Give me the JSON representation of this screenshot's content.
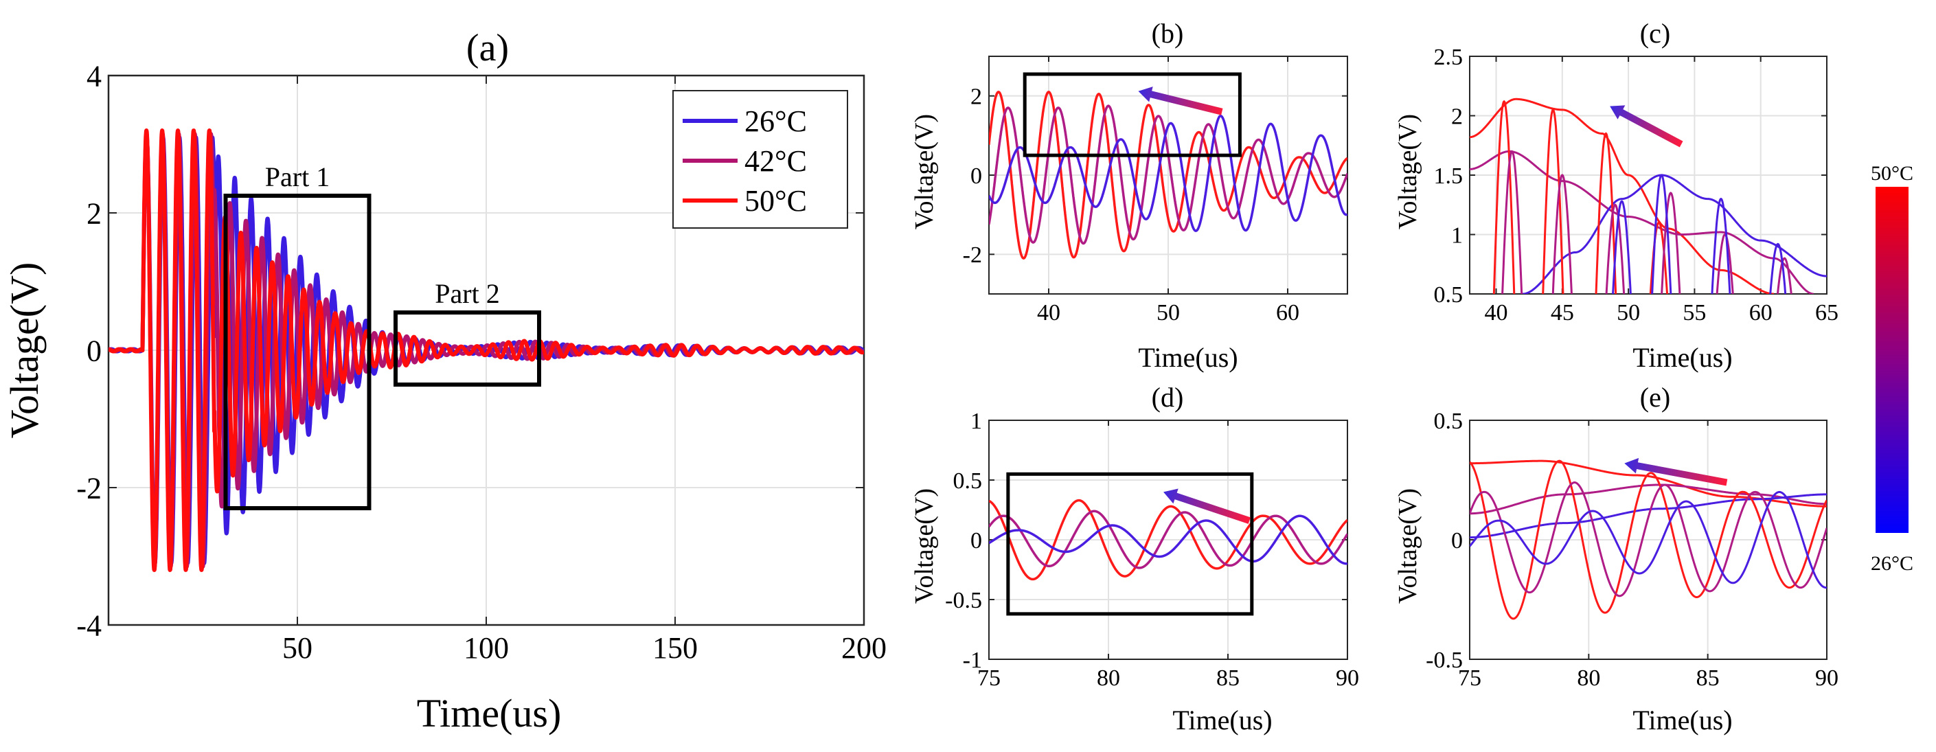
{
  "chart_data": [
    {
      "id": "a",
      "type": "line",
      "title": "(a)",
      "xlabel": "Time(us)",
      "ylabel": "Voltage(V)",
      "xlim": [
        0,
        200
      ],
      "ylim": [
        -4,
        4
      ],
      "xticks": [
        50,
        100,
        150,
        200
      ],
      "yticks": [
        -4,
        -2,
        0,
        2,
        4
      ],
      "grid": true,
      "legend_position": "top-right",
      "series": [
        {
          "name": "26°C",
          "color": "#3a1de0",
          "signal": {
            "t0": 9,
            "t_peak": 28,
            "t_decay_end": 75,
            "freq_MHz": 0.23,
            "amp_early": 3.1,
            "amp_decay_start": 2.9,
            "amp_tail": 0.2,
            "lag_us": 1.6
          }
        },
        {
          "name": "42°C",
          "color": "#b0146e",
          "signal": {
            "t0": 9,
            "t_peak": 28,
            "t_decay_end": 72,
            "freq_MHz": 0.235,
            "amp_early": 3.15,
            "amp_decay_start": 2.4,
            "amp_tail": 0.22,
            "lag_us": 0.8
          }
        },
        {
          "name": "50°C",
          "color": "#ff0d0d",
          "signal": {
            "t0": 9,
            "t_peak": 28,
            "t_decay_end": 70,
            "freq_MHz": 0.24,
            "amp_early": 3.2,
            "amp_decay_start": 2.1,
            "amp_tail": 0.25,
            "lag_us": 0
          }
        }
      ],
      "annotations": [
        {
          "label": "Part 1",
          "x_range": [
            31,
            69
          ],
          "y_range": [
            -2.3,
            2.25
          ]
        },
        {
          "label": "Part 2",
          "x_range": [
            76,
            114
          ],
          "y_range": [
            -0.5,
            0.55
          ]
        }
      ]
    },
    {
      "id": "b",
      "type": "line",
      "title": "(b)",
      "xlabel": "Time(us)",
      "ylabel": "Voltage(V)",
      "xlim": [
        35,
        65
      ],
      "ylim": [
        -3,
        3
      ],
      "xticks": [
        40,
        50,
        60
      ],
      "yticks": [
        -2,
        0,
        2
      ],
      "curves": [
        {
          "peaks_at": [
            40,
            44.2,
            48.2,
            52.4,
            56.8,
            61
          ],
          "amplitudes": [
            2.1,
            2.05,
            1.8,
            1.1,
            0.7,
            0.45
          ],
          "color": "#ff1a1a"
        },
        {
          "peaks_at": [
            40.8,
            45,
            49,
            53.2,
            57.5,
            61.8
          ],
          "amplitudes": [
            1.7,
            1.75,
            1.5,
            1.3,
            0.9,
            0.55
          ],
          "color": "#b01c86"
        },
        {
          "peaks_at": [
            41.8,
            46,
            50,
            54.3,
            58.5,
            62.8
          ],
          "amplitudes": [
            0.7,
            0.9,
            1.3,
            1.5,
            1.3,
            1.0
          ],
          "color": "#4a1ee0"
        }
      ],
      "box": {
        "x_range": [
          38,
          56
        ],
        "y_range": [
          0.5,
          2.55
        ]
      }
    },
    {
      "id": "c",
      "type": "line",
      "title": "(c)",
      "xlabel": "Time(us)",
      "ylabel": "Voltage(V)",
      "xlim": [
        38,
        65
      ],
      "ylim": [
        0.5,
        2.5
      ],
      "xticks": [
        40,
        45,
        50,
        55,
        60,
        65
      ],
      "yticks": [
        0.5,
        1,
        1.5,
        2,
        2.5
      ],
      "envelopes": [
        {
          "points": [
            [
              38,
              1.82
            ],
            [
              41.5,
              2.14
            ],
            [
              45,
              2.05
            ],
            [
              48,
              1.85
            ],
            [
              50,
              1.5
            ],
            [
              53,
              1.05
            ],
            [
              57,
              0.7
            ],
            [
              61,
              0.5
            ]
          ],
          "color": "#ff1a1a"
        },
        {
          "points": [
            [
              38,
              1.55
            ],
            [
              41,
              1.7
            ],
            [
              45,
              1.45
            ],
            [
              50,
              1.15
            ],
            [
              54,
              1.0
            ],
            [
              57,
              1.02
            ],
            [
              61,
              0.8
            ],
            [
              64,
              0.5
            ]
          ],
          "color": "#b01c86"
        },
        {
          "points": [
            [
              42,
              0.5
            ],
            [
              46,
              0.85
            ],
            [
              49.5,
              1.3
            ],
            [
              52.5,
              1.5
            ],
            [
              56,
              1.3
            ],
            [
              60,
              0.95
            ],
            [
              65,
              0.65
            ]
          ],
          "color": "#4a1ee0"
        }
      ],
      "peaks": [
        {
          "t": 40.6,
          "v": 2.12,
          "color": "#ff1a1a"
        },
        {
          "t": 44.3,
          "v": 2.05,
          "color": "#ff1a1a"
        },
        {
          "t": 48.3,
          "v": 1.85,
          "color": "#ff1a1a"
        },
        {
          "t": 52.3,
          "v": 1.1,
          "color": "#ff1a1a"
        },
        {
          "t": 41.2,
          "v": 1.7,
          "color": "#b01c86"
        },
        {
          "t": 45,
          "v": 1.5,
          "color": "#b01c86"
        },
        {
          "t": 49,
          "v": 1.25,
          "color": "#b01c86"
        },
        {
          "t": 53.2,
          "v": 1.35,
          "color": "#b01c86"
        },
        {
          "t": 57.3,
          "v": 1.0,
          "color": "#b01c86"
        },
        {
          "t": 61.8,
          "v": 0.8,
          "color": "#b01c86"
        },
        {
          "t": 49.5,
          "v": 1.28,
          "color": "#4a1ee0"
        },
        {
          "t": 52.5,
          "v": 1.5,
          "color": "#4a1ee0"
        },
        {
          "t": 57,
          "v": 1.3,
          "color": "#4a1ee0"
        },
        {
          "t": 61.3,
          "v": 0.92,
          "color": "#4a1ee0"
        }
      ]
    },
    {
      "id": "d",
      "type": "line",
      "title": "(d)",
      "xlabel": "Time(us)",
      "ylabel": "Voltage(V)",
      "xlim": [
        75,
        90
      ],
      "ylim": [
        -1,
        1
      ],
      "xticks": [
        75,
        80,
        85,
        90
      ],
      "yticks": [
        -1,
        -0.5,
        0,
        0.5,
        1
      ],
      "curves": [
        {
          "peaks_at": [
            74.9,
            78.8,
            82.6,
            86.5
          ],
          "amplitudes": [
            0.33,
            0.33,
            0.28,
            0.2
          ],
          "color": "#ff1a1a"
        },
        {
          "peaks_at": [
            75.6,
            79.4,
            83.2,
            87
          ],
          "amplitudes": [
            0.2,
            0.24,
            0.23,
            0.2
          ],
          "color": "#b01c86"
        },
        {
          "peaks_at": [
            76.2,
            80.1,
            84,
            88
          ],
          "amplitudes": [
            0.08,
            0.12,
            0.16,
            0.2
          ],
          "color": "#4a1ee0"
        }
      ],
      "box": {
        "x_range": [
          75.8,
          86
        ],
        "y_range": [
          -0.62,
          0.55
        ]
      }
    },
    {
      "id": "e",
      "type": "line",
      "title": "(e)",
      "xlabel": "Time(us)",
      "ylabel": "Voltage(V)",
      "xlim": [
        75,
        90
      ],
      "ylim": [
        -0.5,
        0.5
      ],
      "xticks": [
        75,
        80,
        85,
        90
      ],
      "yticks": [
        -0.5,
        0,
        0.5
      ],
      "envelopes": [
        {
          "points": [
            [
              75,
              0.32
            ],
            [
              78,
              0.33
            ],
            [
              82,
              0.27
            ],
            [
              86,
              0.18
            ],
            [
              90,
              0.14
            ]
          ],
          "color": "#ff1a1a"
        },
        {
          "points": [
            [
              75,
              0.11
            ],
            [
              79,
              0.19
            ],
            [
              83,
              0.23
            ],
            [
              87,
              0.19
            ],
            [
              90,
              0.15
            ]
          ],
          "color": "#b01c86"
        },
        {
          "points": [
            [
              75,
              0.01
            ],
            [
              79,
              0.07
            ],
            [
              83,
              0.13
            ],
            [
              87,
              0.17
            ],
            [
              90,
              0.19
            ]
          ],
          "color": "#4a1ee0"
        }
      ],
      "curves": [
        {
          "peaks_at": [
            74.9,
            78.8,
            82.6,
            86.5
          ],
          "amplitudes": [
            0.33,
            0.33,
            0.28,
            0.2
          ],
          "color": "#ff1a1a"
        },
        {
          "peaks_at": [
            75.6,
            79.4,
            83.2,
            87
          ],
          "amplitudes": [
            0.2,
            0.24,
            0.23,
            0.2
          ],
          "color": "#b01c86"
        },
        {
          "peaks_at": [
            76.2,
            80.1,
            84,
            88
          ],
          "amplitudes": [
            0.08,
            0.12,
            0.16,
            0.2
          ],
          "color": "#4a1ee0"
        }
      ]
    }
  ],
  "colorbar": {
    "max_label": "50°C",
    "min_label": "26°C",
    "top_color": "#ff0000",
    "mid_color": "#880088",
    "bottom_color": "#0000ff"
  },
  "trend_arrow": {
    "start_color": "#3a2adf",
    "end_color": "#ff1a3a"
  }
}
